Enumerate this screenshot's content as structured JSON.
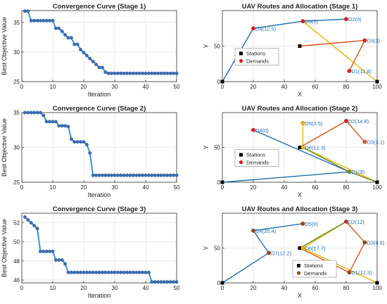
{
  "chart_data": [
    {
      "type": "line",
      "title": "Convergence Curve (Stage 1)",
      "xlabel": "Iteration",
      "ylabel": "Best Objective Value",
      "xlim": [
        0,
        50
      ],
      "ylim": [
        25,
        37
      ],
      "xticks": [
        0,
        10,
        20,
        30,
        40,
        50
      ],
      "yticks": [
        25,
        30,
        35
      ],
      "grid": true,
      "series": [
        {
          "color": "#1f77b4",
          "x": [
            1,
            2,
            3,
            4,
            5,
            6,
            7,
            8,
            9,
            10,
            11,
            12,
            13,
            14,
            15,
            16,
            17,
            18,
            19,
            20,
            21,
            22,
            23,
            24,
            25,
            26,
            27,
            28,
            29,
            30,
            31,
            32,
            33,
            34,
            35,
            36,
            37,
            38,
            39,
            40,
            41,
            42,
            43,
            44,
            45,
            46,
            47,
            48,
            49,
            50
          ],
          "values": [
            36.9,
            36.9,
            35.3,
            35.3,
            35.3,
            35.3,
            35.3,
            35.3,
            35.3,
            35.3,
            34.0,
            34.0,
            33.5,
            32.9,
            32.4,
            32.4,
            31.3,
            31.3,
            30.4,
            29.9,
            29.4,
            28.9,
            28.4,
            27.9,
            27.4,
            27.4,
            26.6,
            26.4,
            26.4,
            26.4,
            26.4,
            26.4,
            26.4,
            26.4,
            26.4,
            26.4,
            26.4,
            26.4,
            26.4,
            26.4,
            26.4,
            26.4,
            26.4,
            26.4,
            26.4,
            26.4,
            26.4,
            26.4,
            26.4,
            26.4
          ]
        }
      ]
    },
    {
      "type": "line",
      "title": "Convergence Curve (Stage 2)",
      "xlabel": "Iteration",
      "ylabel": "Best Objective Value",
      "xlim": [
        0,
        50
      ],
      "ylim": [
        25,
        35
      ],
      "xticks": [
        0,
        10,
        20,
        30,
        40,
        50
      ],
      "yticks": [
        25,
        30,
        35
      ],
      "grid": true,
      "series": [
        {
          "color": "#1f77b4",
          "x": [
            1,
            2,
            3,
            4,
            5,
            6,
            7,
            8,
            9,
            10,
            11,
            12,
            13,
            14,
            15,
            16,
            17,
            18,
            19,
            20,
            21,
            22,
            23,
            24,
            25,
            26,
            27,
            28,
            29,
            30,
            31,
            32,
            33,
            34,
            35,
            36,
            37,
            38,
            39,
            40,
            41,
            42,
            43,
            44,
            45,
            46,
            47,
            48,
            49,
            50
          ],
          "values": [
            35.0,
            35.0,
            35.0,
            35.0,
            35.0,
            35.0,
            34.6,
            33.7,
            33.7,
            33.7,
            33.7,
            33.1,
            33.1,
            33.1,
            33.0,
            31.2,
            30.8,
            30.8,
            30.8,
            30.8,
            30.4,
            29.2,
            26.0,
            26.0,
            26.0,
            26.0,
            26.0,
            26.0,
            26.0,
            26.0,
            26.0,
            26.0,
            26.0,
            26.0,
            26.0,
            26.0,
            26.0,
            26.0,
            26.0,
            26.0,
            26.0,
            26.0,
            26.0,
            26.0,
            26.0,
            26.0,
            26.0,
            26.0,
            26.0,
            26.0
          ]
        }
      ]
    },
    {
      "type": "line",
      "title": "Convergence Curve (Stage 3)",
      "xlabel": "Iteration",
      "ylabel": "Best Objective Value",
      "xlim": [
        0,
        50
      ],
      "ylim": [
        45.7,
        53
      ],
      "xticks": [
        0,
        10,
        20,
        30,
        40,
        50
      ],
      "yticks": [
        46,
        48,
        50,
        52
      ],
      "grid": true,
      "series": [
        {
          "color": "#1f77b4",
          "x": [
            1,
            2,
            3,
            4,
            5,
            6,
            7,
            8,
            9,
            10,
            11,
            12,
            13,
            14,
            15,
            16,
            17,
            18,
            19,
            20,
            21,
            22,
            23,
            24,
            25,
            26,
            27,
            28,
            29,
            30,
            31,
            32,
            33,
            34,
            35,
            36,
            37,
            38,
            39,
            40,
            41,
            42,
            43,
            44,
            45,
            46,
            47,
            48,
            49,
            50
          ],
          "values": [
            52.6,
            52.3,
            52.0,
            51.7,
            51.4,
            49.0,
            49.0,
            49.0,
            49.0,
            49.0,
            48.1,
            48.1,
            48.1,
            47.7,
            46.8,
            46.8,
            46.8,
            46.8,
            46.8,
            46.8,
            46.8,
            46.8,
            46.8,
            46.8,
            46.8,
            46.8,
            46.8,
            46.8,
            46.8,
            46.8,
            46.8,
            46.8,
            46.8,
            46.8,
            46.8,
            46.8,
            46.8,
            46.8,
            46.8,
            46.8,
            46.8,
            45.8,
            45.8,
            45.8,
            45.8,
            45.8,
            45.8,
            45.8,
            45.8,
            45.8
          ]
        }
      ]
    },
    {
      "type": "scatter",
      "title": "UAV Routes and Allocation (Stage 1)",
      "xlabel": "X",
      "ylabel": "Y",
      "xlim": [
        0,
        100
      ],
      "ylim": [
        0,
        100
      ],
      "xticks": [
        0,
        20,
        40,
        60,
        80,
        100
      ],
      "yticks": [
        0,
        50
      ],
      "grid": true,
      "legend": {
        "position": "center",
        "entries": [
          "Stations",
          "Demands"
        ]
      },
      "stations": [
        {
          "x": 0,
          "y": 0
        },
        {
          "x": 50,
          "y": 50
        },
        {
          "x": 100,
          "y": 0
        }
      ],
      "demands": [
        {
          "label": "D4(12.5)",
          "x": 20,
          "y": 75,
          "color": "#e31a1c"
        },
        {
          "label": "D5(0)",
          "x": 52,
          "y": 85,
          "color": "#e31a1c"
        },
        {
          "label": "D2(0)",
          "x": 80,
          "y": 88,
          "color": "#e31a1c"
        },
        {
          "label": "D3(3)",
          "x": 92,
          "y": 58,
          "color": "#e31a1c"
        },
        {
          "label": "D1(11.8)",
          "x": 82,
          "y": 15,
          "color": "#e31a1c"
        }
      ],
      "routes": [
        {
          "color": "#1f6fb0",
          "points": [
            [
              0,
              0
            ],
            [
              20,
              75
            ],
            [
              52,
              85
            ],
            [
              80,
              88
            ]
          ]
        },
        {
          "color": "#e6b800",
          "points": [
            [
              100,
              0
            ],
            [
              52,
              85
            ]
          ]
        },
        {
          "color": "#d9541a",
          "points": [
            [
              50,
              50
            ],
            [
              92,
              58
            ],
            [
              82,
              15
            ]
          ]
        }
      ]
    },
    {
      "type": "scatter",
      "title": "UAV Routes and Allocation (Stage 2)",
      "xlabel": "X",
      "ylabel": "Y",
      "xlim": [
        0,
        100
      ],
      "ylim": [
        0,
        100
      ],
      "xticks": [
        0,
        20,
        40,
        60,
        80,
        100
      ],
      "yticks": [
        0,
        50
      ],
      "grid": true,
      "legend": {
        "position": "center",
        "entries": [
          "Stations",
          "Demands"
        ]
      },
      "stations": [
        {
          "x": 0,
          "y": 0
        },
        {
          "x": 50,
          "y": 50
        },
        {
          "x": 100,
          "y": 0
        }
      ],
      "demands": [
        {
          "label": "D4(0)",
          "x": 20,
          "y": 75,
          "color": "#e31a1c"
        },
        {
          "label": "D5(2.5)",
          "x": 52,
          "y": 85,
          "color": "#e6b800"
        },
        {
          "label": "D2(14.8)",
          "x": 80,
          "y": 88,
          "color": "#e31a1c"
        },
        {
          "label": "D3(3.1)",
          "x": 92,
          "y": 58,
          "color": "#d9541a"
        },
        {
          "label": "D6(12.3)",
          "x": 52,
          "y": 50,
          "color": "#e6b800"
        },
        {
          "label": "D1(9)",
          "x": 82,
          "y": 15,
          "color": "#6a8a2a"
        }
      ],
      "routes": [
        {
          "color": "#1f6fb0",
          "points": [
            [
              20,
              75
            ],
            [
              82,
              15
            ],
            [
              0,
              0
            ]
          ]
        },
        {
          "color": "#e6b800",
          "points": [
            [
              100,
              0
            ],
            [
              52,
              50
            ],
            [
              52,
              85
            ]
          ]
        },
        {
          "color": "#d9541a",
          "points": [
            [
              50,
              50
            ],
            [
              80,
              88
            ],
            [
              92,
              58
            ]
          ]
        },
        {
          "color": "#6a8a2a",
          "points": [
            [
              52,
              50
            ],
            [
              82,
              15
            ],
            [
              100,
              0
            ]
          ]
        }
      ]
    },
    {
      "type": "scatter",
      "title": "UAV Routes and Allocation (Stage 3)",
      "xlabel": "X",
      "ylabel": "Y",
      "xlim": [
        0,
        100
      ],
      "ylim": [
        0,
        100
      ],
      "xticks": [
        0,
        20,
        40,
        60,
        80,
        100
      ],
      "yticks": [
        0,
        50
      ],
      "grid": true,
      "legend": {
        "position": "bottom",
        "entries": [
          "Stations",
          "Demands"
        ]
      },
      "stations": [
        {
          "x": 0,
          "y": 0
        },
        {
          "x": 50,
          "y": 50
        },
        {
          "x": 100,
          "y": 0
        }
      ],
      "demands": [
        {
          "label": "D4(20.4)",
          "x": 20,
          "y": 75,
          "color": "#8b4a1a"
        },
        {
          "label": "D5(0)",
          "x": 52,
          "y": 85,
          "color": "#8b4a1a"
        },
        {
          "label": "D2(12)",
          "x": 80,
          "y": 88,
          "color": "#e31a1c"
        },
        {
          "label": "D3(8.8)",
          "x": 92,
          "y": 58,
          "color": "#8b4a1a"
        },
        {
          "label": "D7(12.2)",
          "x": 30,
          "y": 43,
          "color": "#8b4a1a"
        },
        {
          "label": "D6(17.7)",
          "x": 52,
          "y": 50,
          "color": "#e6b800"
        },
        {
          "label": "D1(12.3)",
          "x": 82,
          "y": 15,
          "color": "#8b4a1a"
        }
      ],
      "routes": [
        {
          "color": "#1f6fb0",
          "points": [
            [
              0,
              0
            ],
            [
              30,
              43
            ],
            [
              20,
              75
            ],
            [
              52,
              85
            ]
          ]
        },
        {
          "color": "#e6b800",
          "points": [
            [
              100,
              0
            ],
            [
              52,
              50
            ],
            [
              80,
              88
            ]
          ]
        },
        {
          "color": "#d9541a",
          "points": [
            [
              80,
              88
            ],
            [
              92,
              58
            ],
            [
              82,
              15
            ],
            [
              50,
              50
            ]
          ]
        },
        {
          "color": "#6a8a2a",
          "points": [
            [
              50,
              50
            ],
            [
              80,
              88
            ]
          ]
        }
      ]
    }
  ]
}
